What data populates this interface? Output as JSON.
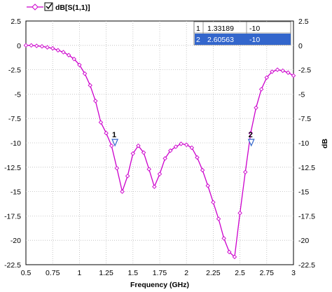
{
  "chart_data": {
    "type": "line",
    "title": "",
    "xlabel": "Frequency (GHz)",
    "ylabel_left": "",
    "ylabel_right": "dB",
    "xlim": [
      0.5,
      3.0
    ],
    "ylim": [
      -22.5,
      2.5
    ],
    "x_ticks": [
      "0.5",
      "0.75",
      "1",
      "1.25",
      "1.5",
      "1.75",
      "2",
      "2.25",
      "2.5",
      "2.75",
      "3"
    ],
    "y_ticks": [
      "2.5",
      "0",
      "-2.5",
      "-5",
      "-7.5",
      "-10",
      "-12.5",
      "-15",
      "-17.5",
      "-20",
      "-22.5"
    ],
    "grid": "dotted",
    "legend": {
      "position": "top-left",
      "entries": [
        "dB[S(1,1)]"
      ],
      "checkbox": "checked"
    },
    "series": [
      {
        "name": "dB[S(1,1)]",
        "color": "#cc00cc",
        "x": [
          0.5,
          0.55,
          0.6,
          0.65,
          0.7,
          0.75,
          0.8,
          0.85,
          0.9,
          0.95,
          1.0,
          1.05,
          1.1,
          1.15,
          1.2,
          1.25,
          1.3,
          1.35,
          1.4,
          1.45,
          1.5,
          1.55,
          1.6,
          1.65,
          1.7,
          1.75,
          1.8,
          1.85,
          1.9,
          1.95,
          2.0,
          2.05,
          2.1,
          2.15,
          2.2,
          2.25,
          2.3,
          2.35,
          2.4,
          2.45,
          2.5,
          2.55,
          2.6,
          2.65,
          2.7,
          2.75,
          2.8,
          2.85,
          2.9,
          2.95,
          3.0
        ],
        "y": [
          0.0,
          0.0,
          -0.05,
          -0.1,
          -0.2,
          -0.3,
          -0.5,
          -0.7,
          -1.0,
          -1.4,
          -2.0,
          -2.9,
          -4.1,
          -5.7,
          -7.9,
          -9.0,
          -10.3,
          -12.6,
          -15.0,
          -13.4,
          -11.1,
          -10.3,
          -11.0,
          -12.7,
          -14.5,
          -13.2,
          -11.6,
          -10.8,
          -10.4,
          -10.1,
          -10.2,
          -10.5,
          -11.5,
          -12.8,
          -14.4,
          -16.1,
          -17.8,
          -19.8,
          -21.2,
          -21.7,
          -17.2,
          -13.0,
          -9.0,
          -6.4,
          -4.5,
          -3.3,
          -2.7,
          -2.5,
          -2.6,
          -2.8,
          -3.1
        ]
      }
    ],
    "markers": [
      {
        "label": "1",
        "x": 1.33189,
        "y": -10
      },
      {
        "label": "2",
        "x": 2.60563,
        "y": -10
      }
    ],
    "marker_table": {
      "rows": [
        {
          "id": "1",
          "x": "1.33189",
          "y": "-10",
          "selected": false
        },
        {
          "id": "2",
          "x": "2.60563",
          "y": "-10",
          "selected": true
        }
      ]
    }
  },
  "colors": {
    "series": "#cc00cc",
    "marker": "#3366cc",
    "selection": "#3366cc",
    "grid": "#bbbbbb"
  }
}
